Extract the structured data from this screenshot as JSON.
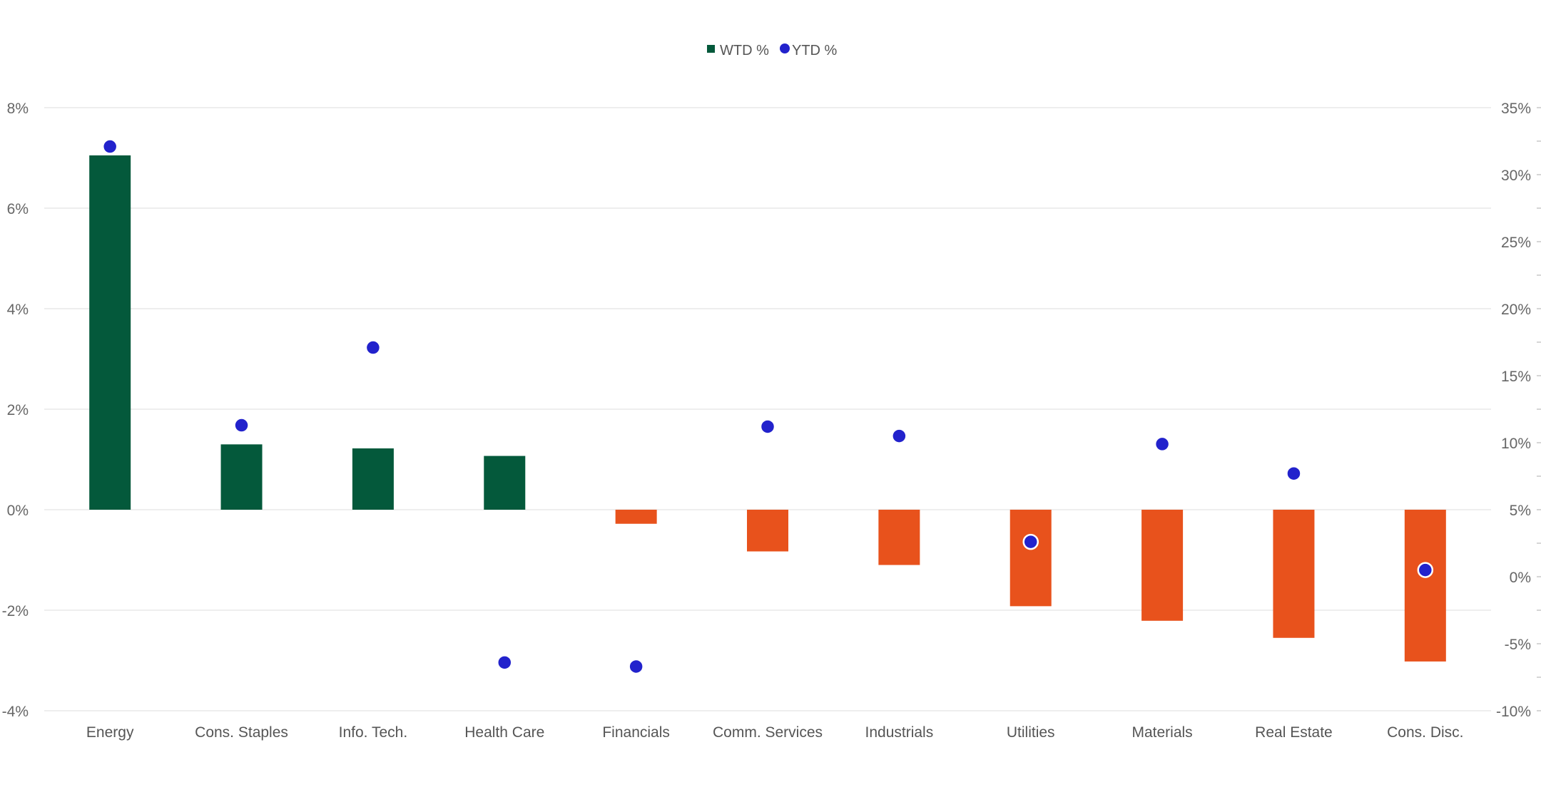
{
  "chart_data": {
    "type": "bar",
    "categories": [
      "Energy",
      "Cons. Staples",
      "Info. Tech.",
      "Health Care",
      "Financials",
      "Comm. Services",
      "Industrials",
      "Utilities",
      "Materials",
      "Real Estate",
      "Cons. Disc."
    ],
    "series": [
      {
        "name": "WTD %",
        "type": "bar",
        "axis": "left",
        "values": [
          7.05,
          1.3,
          1.22,
          1.07,
          -0.28,
          -0.83,
          -1.1,
          -1.92,
          -2.21,
          -2.55,
          -3.02
        ]
      },
      {
        "name": "YTD %",
        "type": "scatter",
        "axis": "right",
        "values": [
          32.1,
          11.3,
          17.1,
          -6.4,
          -6.7,
          11.2,
          10.5,
          2.6,
          9.9,
          7.7,
          0.5
        ]
      }
    ],
    "ylim_left": [
      -4,
      8
    ],
    "ylim_right": [
      -10,
      35
    ],
    "left_ticks": [
      8,
      6,
      4,
      2,
      0,
      -2,
      -4
    ],
    "left_tick_labels": [
      "8%",
      "6%",
      "4%",
      "2%",
      "0%",
      "-2%",
      "-4%"
    ],
    "right_ticks": [
      35,
      30,
      25,
      20,
      15,
      10,
      5,
      0,
      -5,
      -10
    ],
    "right_tick_labels": [
      "35%",
      "30%",
      "25%",
      "20%",
      "15%",
      "10%",
      "5%",
      "0%",
      "-5%",
      "-10%"
    ],
    "legend": {
      "position": "top-center",
      "items": [
        "WTD %",
        "YTD %"
      ]
    },
    "grid": true,
    "colors": {
      "positive_bar": "#04593b",
      "negative_bar": "#e8521c",
      "marker": "#2222cc",
      "grid": "#e3e3e3"
    },
    "title": "",
    "xlabel": "",
    "ylabel": ""
  }
}
